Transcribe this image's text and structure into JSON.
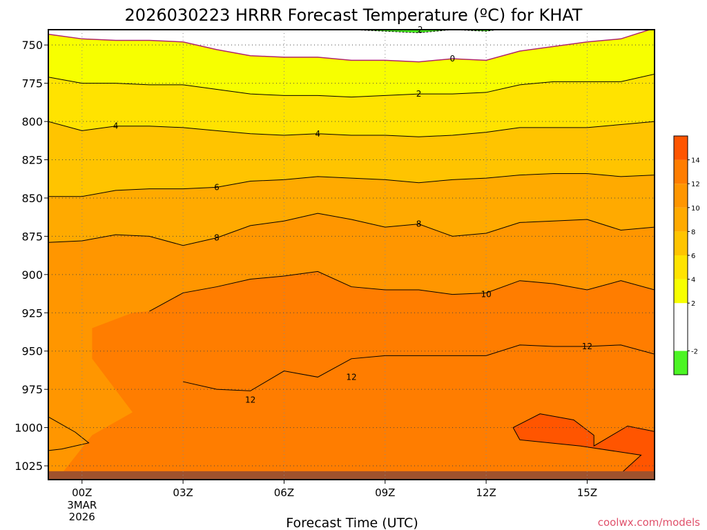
{
  "chart_data": {
    "type": "heatmap",
    "title": "2026030223 HRRR Forecast Temperature (ºC) for KHAT",
    "xlabel": "Forecast Time (UTC)",
    "ylabel": "",
    "y_axis": {
      "inverted": true,
      "ylim": [
        740,
        1034
      ],
      "ticks": [
        750,
        775,
        800,
        825,
        850,
        875,
        900,
        925,
        950,
        975,
        1000,
        1025
      ]
    },
    "x_axis": {
      "xlim": [
        -1,
        17
      ],
      "ticks": [
        {
          "x": 0,
          "label": "00Z",
          "sub1": "3MAR",
          "sub2": "2026"
        },
        {
          "x": 3,
          "label": "03Z",
          "sub1": "",
          "sub2": ""
        },
        {
          "x": 6,
          "label": "06Z",
          "sub1": "",
          "sub2": ""
        },
        {
          "x": 9,
          "label": "09Z",
          "sub1": "",
          "sub2": ""
        },
        {
          "x": 12,
          "label": "12Z",
          "sub1": "",
          "sub2": ""
        },
        {
          "x": 15,
          "label": "15Z",
          "sub1": "",
          "sub2": ""
        }
      ]
    },
    "grid": "dotted",
    "x": [
      -1,
      0,
      1,
      2,
      3,
      4,
      5,
      6,
      7,
      8,
      9,
      10,
      11,
      12,
      13,
      14,
      15,
      16,
      17
    ],
    "isotherms": [
      {
        "value": -2,
        "label": "-2",
        "dashed": true,
        "color": "#000000",
        "p": [
          null,
          null,
          null,
          null,
          null,
          null,
          738,
          739,
          740,
          740,
          741,
          742,
          740,
          741,
          738,
          null,
          null,
          null,
          null
        ]
      },
      {
        "value": 0,
        "label": "0",
        "dashed": false,
        "color": "#b0246a",
        "p": [
          743,
          746,
          747,
          747,
          748,
          753,
          757,
          758,
          758,
          760,
          760,
          761,
          759,
          760,
          754,
          751,
          748,
          746,
          739
        ]
      },
      {
        "value": 2,
        "label": "2",
        "dashed": false,
        "color": "#000000",
        "p": [
          771,
          775,
          775,
          776,
          776,
          779,
          782,
          783,
          783,
          784,
          783,
          782,
          782,
          781,
          776,
          774,
          774,
          774,
          769
        ]
      },
      {
        "value": 4,
        "label": "4",
        "dashed": false,
        "color": "#000000",
        "p": [
          800,
          806,
          803,
          803,
          804,
          806,
          808,
          809,
          808,
          809,
          809,
          810,
          809,
          807,
          804,
          804,
          804,
          802,
          800
        ]
      },
      {
        "value": 6,
        "label": "6",
        "dashed": false,
        "color": "#000000",
        "p": [
          849,
          849,
          845,
          844,
          844,
          843,
          839,
          838,
          836,
          837,
          838,
          840,
          838,
          837,
          835,
          834,
          834,
          836,
          835
        ]
      },
      {
        "value": 8,
        "label": "8",
        "dashed": false,
        "color": "#000000",
        "p": [
          879,
          878,
          874,
          875,
          881,
          876,
          868,
          865,
          860,
          864,
          869,
          867,
          875,
          873,
          866,
          865,
          864,
          871,
          869
        ]
      },
      {
        "value": 10,
        "label": "10",
        "dashed": false,
        "color": "#000000",
        "p": [
          null,
          null,
          null,
          924,
          912,
          908,
          903,
          901,
          898,
          908,
          910,
          910,
          913,
          912,
          904,
          906,
          910,
          904,
          910
        ]
      },
      {
        "value": 12,
        "label": "12",
        "dashed": false,
        "color": "#000000",
        "p": [
          null,
          null,
          null,
          null,
          970,
          975,
          976,
          963,
          967,
          955,
          953,
          953,
          953,
          953,
          946,
          947,
          947,
          946,
          952
        ]
      }
    ],
    "colorbar": {
      "ticks": [
        -2,
        2,
        4,
        6,
        8,
        10,
        12,
        14
      ],
      "colors": [
        {
          "from": -4,
          "to": -2,
          "color": "#4cf524"
        },
        {
          "from": -2,
          "to": 2,
          "color": "#ffffff"
        },
        {
          "from": 2,
          "to": 4,
          "color": "#f7ff00"
        },
        {
          "from": 4,
          "to": 6,
          "color": "#ffe300"
        },
        {
          "from": 6,
          "to": 8,
          "color": "#ffc400"
        },
        {
          "from": 8,
          "to": 10,
          "color": "#ffaa00"
        },
        {
          "from": 10,
          "to": 12,
          "color": "#ff9600"
        },
        {
          "from": 12,
          "to": 14,
          "color": "#ff7d00"
        },
        {
          "from": 14,
          "to": 16,
          "color": "#ff5500"
        }
      ]
    },
    "ground_color": "#a0522d"
  },
  "credit": "coolwx.com/models"
}
